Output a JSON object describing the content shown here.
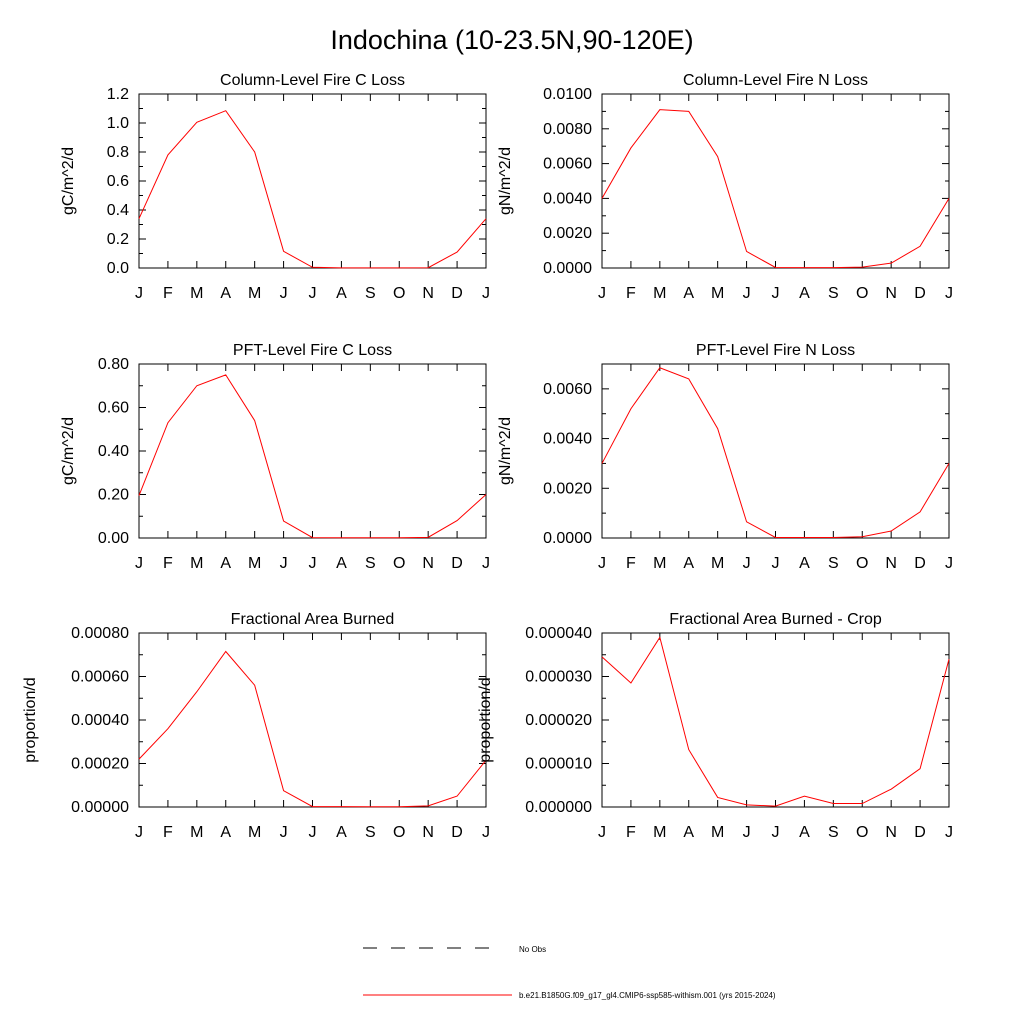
{
  "title": "Indochina (10-23.5N,90-120E)",
  "months": [
    "J",
    "F",
    "M",
    "A",
    "M",
    "J",
    "J",
    "A",
    "S",
    "O",
    "N",
    "D",
    "J"
  ],
  "series_color": "#ff0000",
  "legend": {
    "obs_label": "No Obs",
    "model_label": "b.e21.B1850G.f09_g17_gl4.CMIP6-ssp585-withism.001 (yrs 2015-2024)"
  },
  "chart_data": [
    {
      "type": "line",
      "title": "Column-Level Fire C Loss",
      "ylabel": "gC/m^2/d",
      "ylim": [
        0,
        1.2
      ],
      "yticks": [
        "0.0",
        "0.2",
        "0.4",
        "0.6",
        "0.8",
        "1.0",
        "1.2"
      ],
      "series": [
        {
          "values": [
            0.34,
            0.78,
            1.005,
            1.085,
            0.8,
            0.115,
            0.005,
            0.001,
            0.001,
            0.001,
            0.002,
            0.11,
            0.34
          ]
        }
      ]
    },
    {
      "type": "line",
      "title": "Column-Level Fire N Loss",
      "ylabel": "gN/m^2/d",
      "ylim": [
        0,
        0.01
      ],
      "yticks": [
        "0.0000",
        "0.0020",
        "0.0040",
        "0.0060",
        "0.0080",
        "0.0100"
      ],
      "series": [
        {
          "values": [
            0.004,
            0.0069,
            0.0091,
            0.009,
            0.0064,
            0.00095,
            3e-05,
            2e-05,
            2e-05,
            5e-05,
            0.00028,
            0.00125,
            0.004
          ]
        }
      ]
    },
    {
      "type": "line",
      "title": "PFT-Level Fire C Loss",
      "ylabel": "gC/m^2/d",
      "ylim": [
        0,
        0.8
      ],
      "yticks": [
        "0.00",
        "0.20",
        "0.40",
        "0.60",
        "0.80"
      ],
      "series": [
        {
          "values": [
            0.195,
            0.53,
            0.7,
            0.75,
            0.54,
            0.078,
            0.002,
            0.001,
            0.001,
            0.001,
            0.003,
            0.08,
            0.2
          ]
        }
      ]
    },
    {
      "type": "line",
      "title": "PFT-Level Fire N Loss",
      "ylabel": "gN/m^2/d",
      "ylim": [
        0,
        0.007
      ],
      "yticks": [
        "0.0000",
        "0.0020",
        "0.0040",
        "0.0060"
      ],
      "series": [
        {
          "values": [
            0.003,
            0.0052,
            0.00685,
            0.0064,
            0.0044,
            0.00065,
            2e-05,
            2e-05,
            2e-05,
            5e-05,
            0.00028,
            0.00105,
            0.003
          ]
        }
      ]
    },
    {
      "type": "line",
      "title": "Fractional Area Burned",
      "ylabel": "proportion/d",
      "ylim": [
        0,
        0.0008
      ],
      "yticks": [
        "0.00000",
        "0.00020",
        "0.00040",
        "0.00060",
        "0.00080"
      ],
      "series": [
        {
          "values": [
            0.00022,
            0.00036,
            0.00053,
            0.000715,
            0.00056,
            7.5e-05,
            2e-06,
            2e-06,
            1e-06,
            1e-06,
            5e-06,
            5e-05,
            0.000215
          ]
        }
      ]
    },
    {
      "type": "line",
      "title": "Fractional Area Burned - Crop",
      "ylabel": "proportion/d",
      "ylim": [
        0,
        4e-05
      ],
      "yticks": [
        "0.000000",
        "0.000010",
        "0.000020",
        "0.000030",
        "0.000040"
      ],
      "series": [
        {
          "values": [
            3.45e-05,
            2.85e-05,
            3.9e-05,
            1.32e-05,
            2.2e-06,
            5e-07,
            2e-07,
            2.5e-06,
            8e-07,
            8e-07,
            4.1e-06,
            8.8e-06,
            3.4e-05
          ]
        }
      ]
    }
  ]
}
